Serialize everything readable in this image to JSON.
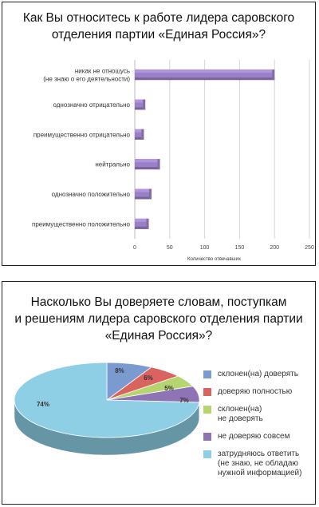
{
  "chart_data": [
    {
      "type": "bar",
      "orientation": "horizontal",
      "title": "Как Вы относитесь к работе лидера саровского отделения партии «Единая Россия»?",
      "categories": [
        "никак не отношусь (не знаю о его деятельности)",
        "однозначно отрицательно",
        "преимущественно отрицательно",
        "нейтрально",
        "однозначно положительно",
        "преимущественно положительно"
      ],
      "values": [
        200,
        15,
        13,
        36,
        24,
        20
      ],
      "xlabel": "Количество отвечавших",
      "xlim": [
        0,
        250
      ],
      "xticks": [
        0,
        50,
        100,
        150,
        200,
        250
      ],
      "grid": true,
      "bar_color": "#9a80c4"
    },
    {
      "type": "pie",
      "title": "Насколько Вы доверяете словам, поступкам и решениям лидера саровского отделения партии «Единая Россия»?",
      "labels": [
        "склонен(на) доверять",
        "доверяю полностью",
        "склонен(на) не доверять",
        "не доверяю совсем",
        "затрудняюсь ответить (не знаю, не обладаю нужной информацией)"
      ],
      "values": [
        8,
        6,
        5,
        7,
        74
      ],
      "value_labels": [
        "8%",
        "6%",
        "5%",
        "7%",
        "74%"
      ],
      "colors": [
        "#7b9ad0",
        "#d9635f",
        "#b6d46f",
        "#8e73b5",
        "#8ecfe6"
      ],
      "legend_placement": "right"
    }
  ],
  "bar_chart": {
    "title_line1": "Как Вы относитесь к работе лидера саровского",
    "title_line2": "отделения партии «Единая Россия»?"
  },
  "pie_chart": {
    "title_line1": "Насколько  Вы доверяете словам, поступкам",
    "title_line2": "и решениям лидера саровского отделения партии",
    "title_line3": "«Единая Россия»?",
    "legend": [
      {
        "lines": [
          "склонен(на) доверять"
        ]
      },
      {
        "lines": [
          "доверяю полностью"
        ]
      },
      {
        "lines": [
          "склонен(на)",
          "не доверять"
        ]
      },
      {
        "lines": [
          "не доверяю совсем"
        ]
      },
      {
        "lines": [
          "затрудняюсь ответить",
          "(не знаю, не обладаю",
          "нужной информацией)"
        ]
      }
    ]
  }
}
